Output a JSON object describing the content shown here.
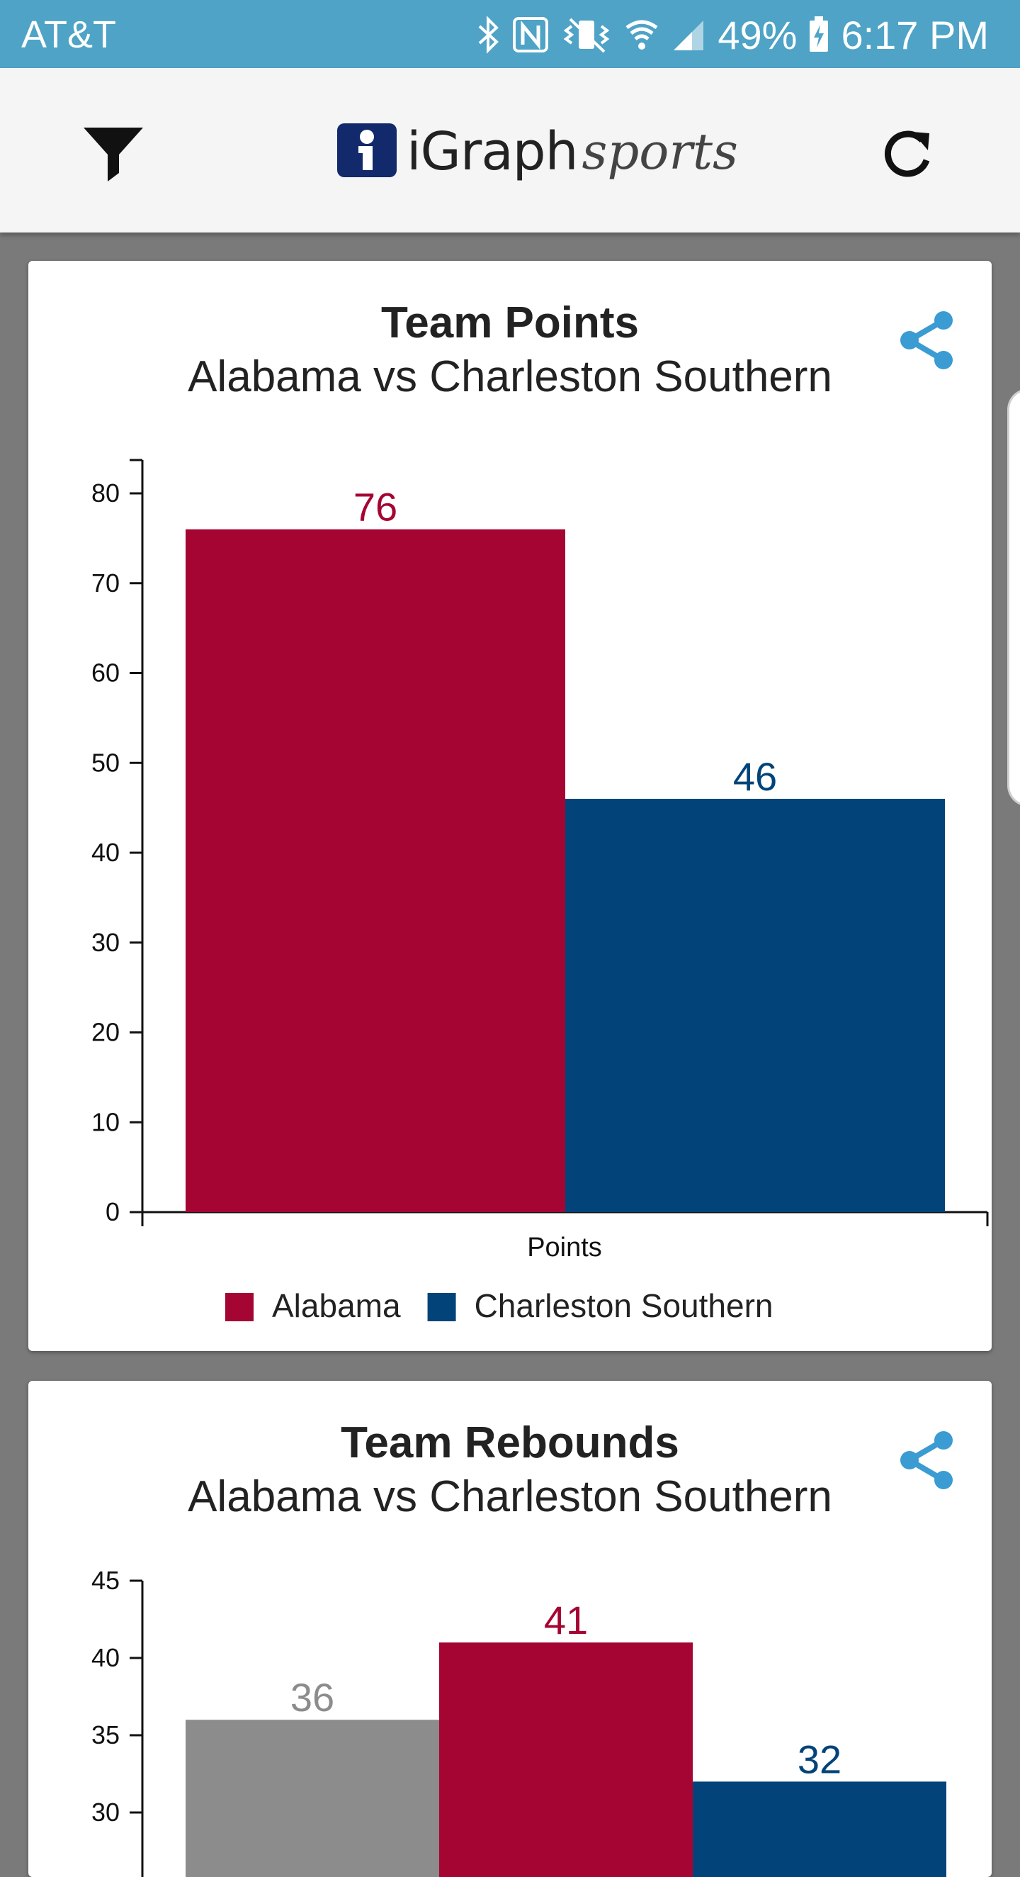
{
  "status_bar": {
    "carrier": "AT&T",
    "battery": "49%",
    "time": "6:17 PM"
  },
  "app_bar": {
    "logo_word": "iGraph",
    "logo_sports": "sports"
  },
  "colors": {
    "alabama": "#a50532",
    "charleston": "#024479",
    "gray": "#8c8c8c",
    "share": "#3b9bd3"
  },
  "cards": [
    {
      "title": "Team Points",
      "subtitle": "Alabama vs Charleston Southern"
    },
    {
      "title": "Team Rebounds",
      "subtitle": "Alabama vs Charleston Southern"
    }
  ],
  "chart_data": [
    {
      "type": "bar",
      "title": "Team Points",
      "subtitle": "Alabama vs Charleston Southern",
      "categories": [
        "Points"
      ],
      "xlabel": "Points",
      "ylim": [
        0,
        80
      ],
      "yticks": [
        0,
        10,
        20,
        30,
        40,
        50,
        60,
        70,
        80
      ],
      "series": [
        {
          "name": "Alabama",
          "values": [
            76
          ],
          "color": "#a50532"
        },
        {
          "name": "Charleston Southern",
          "values": [
            46
          ],
          "color": "#024479"
        }
      ],
      "legend": "bottom"
    },
    {
      "type": "bar",
      "title": "Team Rebounds",
      "subtitle": "Alabama vs Charleston Southern",
      "ylim": [
        30,
        45
      ],
      "yticks": [
        30,
        35,
        40,
        45
      ],
      "bars": [
        {
          "value": 36,
          "color": "#8c8c8c"
        },
        {
          "value": 41,
          "color": "#a50532"
        },
        {
          "value": 32,
          "color": "#024479"
        }
      ]
    }
  ]
}
